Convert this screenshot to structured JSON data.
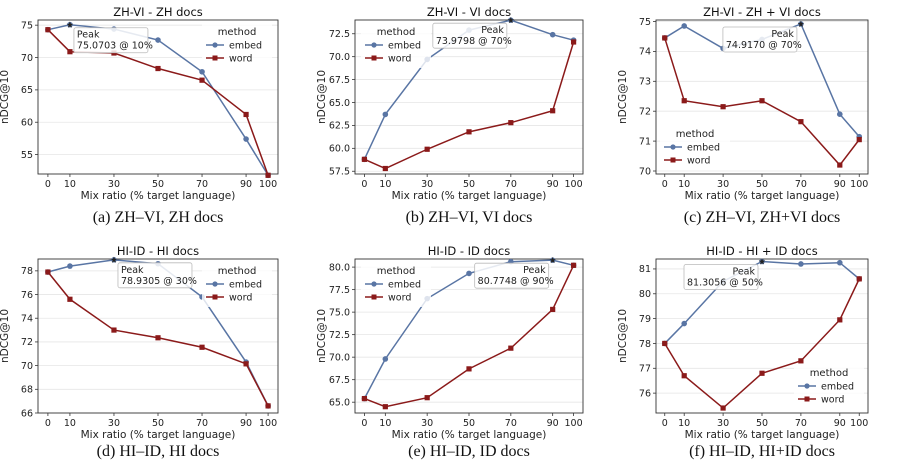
{
  "colors": {
    "embed": "#5975a4",
    "word": "#8b1a1a",
    "grid": "#e6e6e6",
    "axis": "#333333"
  },
  "chart_data": [
    {
      "type": "line",
      "title": "ZH-VI - ZH docs",
      "caption": "(a) ZH–VI, ZH docs",
      "xlabel": "Mix ratio (% target language)",
      "ylabel": "nDCG@10",
      "x": [
        0,
        10,
        30,
        50,
        70,
        90,
        100
      ],
      "ylim": [
        52.0,
        75.8
      ],
      "yticks": [
        55,
        60,
        65,
        70,
        75
      ],
      "legend_title": "method",
      "legend_position": "top-right",
      "series": [
        {
          "name": "embed",
          "values": [
            74.3,
            75.07,
            74.4,
            72.7,
            67.8,
            57.4,
            51.8
          ]
        },
        {
          "name": "word",
          "values": [
            74.3,
            70.9,
            70.7,
            68.3,
            66.5,
            61.2,
            51.8
          ]
        }
      ],
      "peak": {
        "label": "Peak",
        "value_text": "75.0703 @ 10%",
        "x": 10,
        "y": 75.07
      }
    },
    {
      "type": "line",
      "title": "ZH-VI - VI docs",
      "caption": "(b) ZH–VI, VI docs",
      "xlabel": "Mix ratio (% target language)",
      "ylabel": "nDCG@10",
      "x": [
        0,
        10,
        30,
        50,
        70,
        90,
        100
      ],
      "ylim": [
        57.2,
        74.0
      ],
      "yticks": [
        57.5,
        60.0,
        62.5,
        65.0,
        67.5,
        70.0,
        72.5
      ],
      "legend_title": "method",
      "legend_position": "top-left",
      "series": [
        {
          "name": "embed",
          "values": [
            58.8,
            63.7,
            69.7,
            72.9,
            73.98,
            72.4,
            71.8
          ]
        },
        {
          "name": "word",
          "values": [
            58.8,
            57.8,
            59.9,
            61.8,
            62.8,
            64.1,
            71.6
          ]
        }
      ],
      "peak": {
        "label": "Peak",
        "value_text": "73.9798 @ 70%",
        "x": 70,
        "y": 73.98
      }
    },
    {
      "type": "line",
      "title": "ZH-VI - ZH + VI docs",
      "caption": "(c) ZH–VI, ZH+VI docs",
      "xlabel": "Mix ratio (% target language)",
      "ylabel": "nDCG@10",
      "x": [
        0,
        10,
        30,
        50,
        70,
        90,
        100
      ],
      "ylim": [
        69.9,
        75.05
      ],
      "yticks": [
        70,
        71,
        72,
        73,
        74,
        75
      ],
      "legend_title": "method",
      "legend_position": "lower-left",
      "series": [
        {
          "name": "embed",
          "values": [
            74.45,
            74.85,
            74.1,
            74.4,
            74.917,
            71.9,
            71.15
          ]
        },
        {
          "name": "word",
          "values": [
            74.45,
            72.35,
            72.15,
            72.35,
            71.65,
            70.2,
            71.05
          ]
        }
      ],
      "peak": {
        "label": "Peak",
        "value_text": "74.9170 @ 70%",
        "x": 70,
        "y": 74.917
      }
    },
    {
      "type": "line",
      "title": "HI-ID - HI docs",
      "caption": "(d) HI–ID, HI docs",
      "xlabel": "Mix ratio (% target language)",
      "ylabel": "nDCG@10",
      "x": [
        0,
        10,
        30,
        50,
        70,
        90,
        100
      ],
      "ylim": [
        66.0,
        79.0
      ],
      "yticks": [
        66,
        68,
        70,
        72,
        74,
        76,
        78
      ],
      "legend_title": "method",
      "legend_position": "top-right",
      "series": [
        {
          "name": "embed",
          "values": [
            77.9,
            78.4,
            78.93,
            78.6,
            75.8,
            70.3,
            66.6
          ]
        },
        {
          "name": "word",
          "values": [
            77.9,
            75.6,
            73.0,
            72.35,
            71.55,
            70.15,
            66.6
          ]
        }
      ],
      "peak": {
        "label": "Peak",
        "value_text": "78.9305 @ 30%",
        "x": 30,
        "y": 78.93
      }
    },
    {
      "type": "line",
      "title": "HI-ID - ID docs",
      "caption": "(e) HI–ID, ID docs",
      "xlabel": "Mix ratio (% target language)",
      "ylabel": "nDCG@10",
      "x": [
        0,
        10,
        30,
        50,
        70,
        90,
        100
      ],
      "ylim": [
        63.8,
        80.9
      ],
      "yticks": [
        65.0,
        67.5,
        70.0,
        72.5,
        75.0,
        77.5,
        80.0
      ],
      "legend_title": "method",
      "legend_position": "top-left",
      "series": [
        {
          "name": "embed",
          "values": [
            65.4,
            69.8,
            76.5,
            79.3,
            80.6,
            80.77,
            80.2
          ]
        },
        {
          "name": "word",
          "values": [
            65.4,
            64.5,
            65.5,
            68.7,
            71.0,
            75.3,
            80.2
          ]
        }
      ],
      "peak": {
        "label": "Peak",
        "value_text": "80.7748 @ 90%",
        "x": 90,
        "y": 80.77
      }
    },
    {
      "type": "line",
      "title": "HI-ID - HI + ID docs",
      "caption": "(f) HI–ID, HI+ID docs",
      "xlabel": "Mix ratio (% target language)",
      "ylabel": "nDCG@10",
      "x": [
        0,
        10,
        30,
        50,
        70,
        90,
        100
      ],
      "ylim": [
        75.2,
        81.4
      ],
      "yticks": [
        76,
        77,
        78,
        79,
        80,
        81
      ],
      "legend_title": "method",
      "legend_position": "lower-right",
      "series": [
        {
          "name": "embed",
          "values": [
            78.0,
            78.8,
            80.5,
            81.3,
            81.2,
            81.25,
            80.6
          ]
        },
        {
          "name": "word",
          "values": [
            78.0,
            76.7,
            75.4,
            76.8,
            77.3,
            78.95,
            80.6
          ]
        }
      ],
      "peak": {
        "label": "Peak",
        "value_text": "81.3056 @ 50%",
        "x": 50,
        "y": 81.3
      }
    }
  ]
}
